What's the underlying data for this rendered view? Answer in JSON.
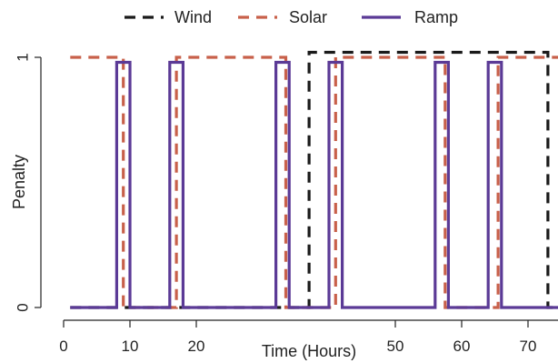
{
  "chart_data": {
    "type": "line",
    "xlabel": "Time (Hours)",
    "ylabel": "Penalty",
    "xlim": [
      0,
      75
    ],
    "ylim": [
      0,
      1
    ],
    "x_ticks": [
      0,
      10,
      20,
      50,
      60,
      70
    ],
    "x_tick_labels": [
      "0",
      "10",
      "20",
      "50",
      "60",
      "70"
    ],
    "y_ticks": [
      0,
      1
    ],
    "y_tick_labels": [
      "0",
      "1"
    ],
    "legend_position": "top",
    "series": [
      {
        "name": "Wind",
        "color": "#1a1a1a",
        "dash": "dashed",
        "x": [
          1,
          37,
          37,
          73,
          73,
          75
        ],
        "y": [
          0,
          0,
          1.02,
          1.02,
          0,
          0
        ]
      },
      {
        "name": "Solar",
        "color": "#c8604a",
        "dash": "dashed",
        "x": [
          1,
          9,
          9,
          17,
          17,
          33.5,
          33.5,
          41,
          41,
          57.5,
          57.5,
          65.5,
          65.5,
          75
        ],
        "y": [
          1,
          1,
          0,
          0,
          1,
          1,
          0,
          0,
          1,
          1,
          0,
          0,
          1,
          1
        ]
      },
      {
        "name": "Ramp",
        "color": "#5b3a96",
        "dash": "solid",
        "x": [
          1,
          8,
          8,
          10,
          10,
          16,
          16,
          18,
          18,
          32,
          32,
          34,
          34,
          40,
          40,
          42,
          42,
          56,
          56,
          58,
          58,
          64,
          64,
          66,
          66,
          75
        ],
        "y": [
          0,
          0,
          0.98,
          0.98,
          0,
          0,
          0.98,
          0.98,
          0,
          0,
          0.98,
          0.98,
          0,
          0,
          0.98,
          0.98,
          0,
          0,
          0.98,
          0.98,
          0,
          0,
          0.98,
          0.98,
          0,
          0
        ]
      }
    ]
  }
}
